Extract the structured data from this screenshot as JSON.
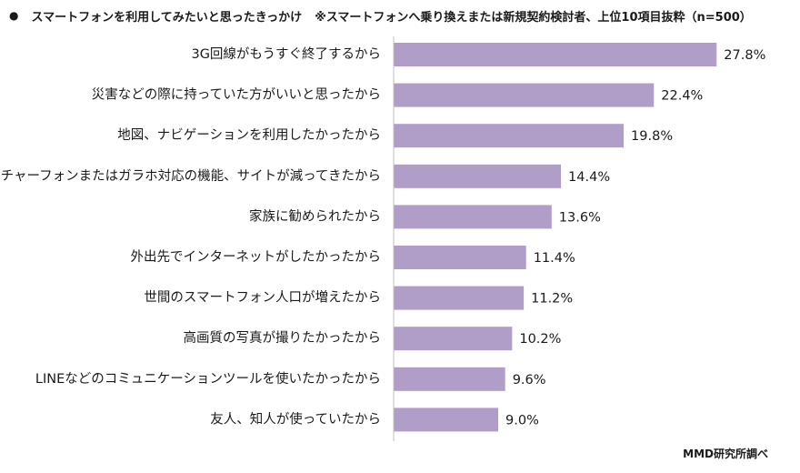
{
  "title": {
    "bullet": "●",
    "main": "スマートフォンを利用してみたいと思ったきっかけ",
    "note": "※スマートフォンへ乗り換えまたは新規契約検討者、上位10項目抜粋（n=500）"
  },
  "source": "MMD研究所調べ",
  "colors": {
    "bar": "#b09ec8",
    "axis": "#bfbfbf",
    "text": "#1a1a1a"
  },
  "chart_data": {
    "type": "bar",
    "orientation": "horizontal",
    "categories": [
      "3G回線がもうすぐ終了するから",
      "災害などの際に持っていた方がいいと思ったから",
      "地図、ナビゲーションを利用したかったから",
      "フィーチャーフォンまたはガラホ対応の機能、サイトが減ってきたから",
      "家族に勧められたから",
      "外出先でインターネットがしたかったから",
      "世間のスマートフォン人口が増えたから",
      "高画質の写真が撮りたかったから",
      "LINEなどのコミュニケーションツールを使いたかったから",
      "友人、知人が使っていたから"
    ],
    "values": [
      27.8,
      22.4,
      19.8,
      14.4,
      13.6,
      11.4,
      11.2,
      10.2,
      9.6,
      9.0
    ],
    "value_labels": [
      "27.8%",
      "22.4%",
      "19.8%",
      "14.4%",
      "13.6%",
      "11.4%",
      "11.2%",
      "10.2%",
      "9.6%",
      "9.0%"
    ],
    "xlim": [
      0,
      36
    ],
    "grid": false,
    "legend": "none"
  }
}
